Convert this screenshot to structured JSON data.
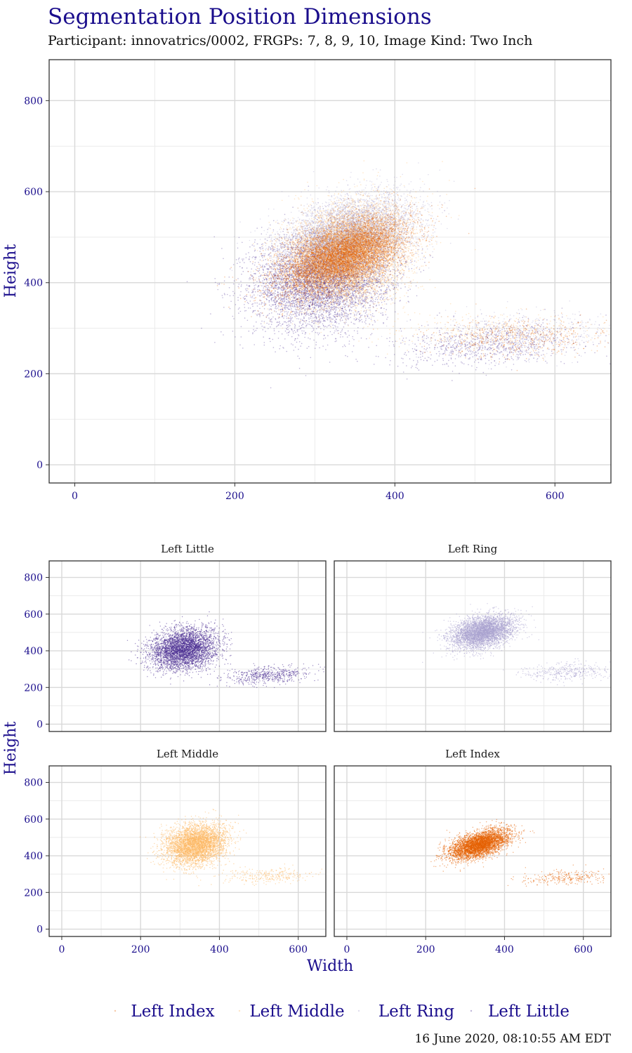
{
  "title": "Segmentation Position Dimensions",
  "subtitle": "Participant: innovatrics/0002, FRGPs: 7, 8, 9, 10, Image Kind: Two Inch",
  "timestamp": "16 June 2020, 08:10:55 AM EDT",
  "colors": {
    "Left Little": "#4a2d91",
    "Left Ring": "#a9a2cf",
    "Left Middle": "#fdb863",
    "Left Index": "#e66101",
    "axis_text": "#1a0d8c",
    "grid": "#d9d9d9",
    "panel_border": "#333333"
  },
  "chart_data": [
    {
      "type": "scatter",
      "panel": "combined",
      "xlabel": "",
      "ylabel": "Height",
      "xlim": [
        -32,
        670
      ],
      "ylim": [
        -40,
        890
      ],
      "xticks": [
        0,
        200,
        400,
        600
      ],
      "yticks": [
        0,
        200,
        400,
        600,
        800
      ],
      "grid": true,
      "series": [
        {
          "name": "Left Little",
          "clusters": [
            {
              "cx": 310,
              "cy": 410,
              "sx": 42,
              "sy": 55,
              "rho": 0.15,
              "share": 0.88
            },
            {
              "cx": 520,
              "cy": 265,
              "sx": 55,
              "sy": 25,
              "rho": 0.35,
              "share": 0.12
            }
          ]
        },
        {
          "name": "Left Ring",
          "clusters": [
            {
              "cx": 345,
              "cy": 500,
              "sx": 40,
              "sy": 45,
              "rho": 0.35,
              "share": 0.92
            },
            {
              "cx": 560,
              "cy": 285,
              "sx": 60,
              "sy": 25,
              "rho": 0.2,
              "share": 0.08
            }
          ]
        },
        {
          "name": "Left Middle",
          "clusters": [
            {
              "cx": 340,
              "cy": 460,
              "sx": 38,
              "sy": 55,
              "rho": 0.2,
              "share": 0.94
            },
            {
              "cx": 530,
              "cy": 290,
              "sx": 65,
              "sy": 20,
              "rho": 0.1,
              "share": 0.06
            }
          ]
        },
        {
          "name": "Left Index",
          "clusters": [
            {
              "cx": 335,
              "cy": 460,
              "sx": 38,
              "sy": 40,
              "rho": 0.55,
              "share": 0.94
            },
            {
              "cx": 560,
              "cy": 280,
              "sx": 55,
              "sy": 22,
              "rho": 0.1,
              "share": 0.06
            }
          ]
        }
      ]
    },
    {
      "type": "scatter",
      "panel": "facets",
      "xlabel": "Width",
      "ylabel": "Height",
      "xlim": [
        -32,
        670
      ],
      "ylim": [
        -40,
        890
      ],
      "xticks": [
        0,
        200,
        400,
        600
      ],
      "yticks": [
        0,
        200,
        400,
        600,
        800
      ],
      "facets": [
        "Left Little",
        "Left Ring",
        "Left Middle",
        "Left Index"
      ]
    }
  ],
  "legend": {
    "position": "bottom",
    "items": [
      "Left Index",
      "Left Middle",
      "Left Ring",
      "Left Little"
    ]
  }
}
